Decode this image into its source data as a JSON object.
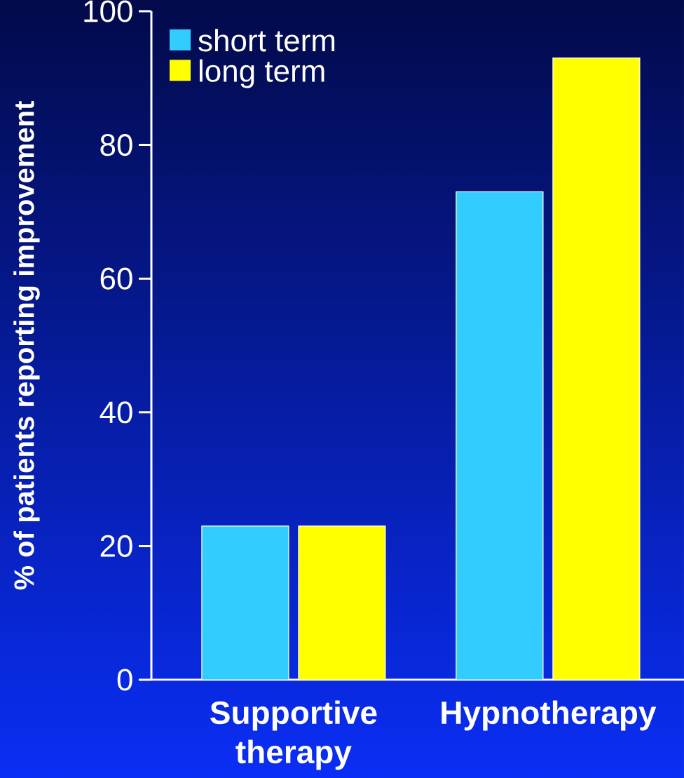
{
  "chart_data": {
    "type": "bar",
    "ylabel": "% of patients reporting improvement",
    "categories": [
      "Supportive therapy",
      "Hypnotherapy"
    ],
    "series": [
      {
        "name": "short term",
        "color": "#33ccff",
        "values": [
          23,
          73
        ]
      },
      {
        "name": "long term",
        "color": "#ffff00",
        "values": [
          23,
          93
        ]
      }
    ],
    "ylim": [
      0,
      100
    ],
    "yticks": [
      0,
      20,
      40,
      60,
      80,
      100
    ],
    "grid": false,
    "legend": "top left"
  }
}
